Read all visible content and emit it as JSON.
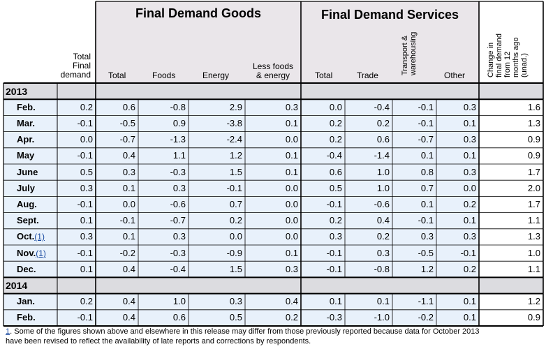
{
  "colors": {
    "header_shade": "#eae6ea",
    "row_shade": "#e8f1fb",
    "year_shade": "#dcdce0",
    "grid": "#000000",
    "link": "#1a4aa0"
  },
  "header": {
    "goods_title": "Final Demand Goods",
    "services_title": "Final Demand Services",
    "total_final_demand": [
      "Total",
      "Final",
      "demand"
    ],
    "goods_total": "Total",
    "goods_foods": "Foods",
    "goods_energy": "Energy",
    "goods_less": [
      "Less foods",
      "& energy"
    ],
    "services_total": "Total",
    "services_trade": "Trade",
    "services_transport": [
      "Transport &",
      "warehousing"
    ],
    "services_other": "Other",
    "change_12m": [
      "Change in",
      "final demand",
      "from 12",
      "months ago",
      "(unad.)"
    ]
  },
  "sections": [
    {
      "year": "2013",
      "rows": [
        {
          "month": "Feb.",
          "fn": "",
          "values": [
            "0.2",
            "0.6",
            "-0.8",
            "2.9",
            "0.3",
            "0.0",
            "-0.4",
            "-0.1",
            "0.3",
            "1.6"
          ]
        },
        {
          "month": "Mar.",
          "fn": "",
          "values": [
            "-0.1",
            "-0.5",
            "0.9",
            "-3.8",
            "0.1",
            "0.2",
            "0.2",
            "-0.1",
            "0.1",
            "1.3"
          ]
        },
        {
          "month": "Apr.",
          "fn": "",
          "values": [
            "0.0",
            "-0.7",
            "-1.3",
            "-2.4",
            "0.0",
            "0.2",
            "0.6",
            "-0.7",
            "0.3",
            "0.9"
          ]
        },
        {
          "month": "May",
          "fn": "",
          "values": [
            "-0.1",
            "0.4",
            "1.1",
            "1.2",
            "0.1",
            "-0.4",
            "-1.4",
            "0.1",
            "0.1",
            "0.9"
          ]
        },
        {
          "month": "June",
          "fn": "",
          "values": [
            "0.5",
            "0.3",
            "-0.3",
            "1.5",
            "0.1",
            "0.6",
            "1.0",
            "0.8",
            "0.3",
            "1.7"
          ]
        },
        {
          "month": "July",
          "fn": "",
          "values": [
            "0.3",
            "0.1",
            "0.3",
            "-0.1",
            "0.0",
            "0.5",
            "1.0",
            "0.7",
            "0.0",
            "2.0"
          ]
        },
        {
          "month": "Aug.",
          "fn": "",
          "values": [
            "-0.1",
            "0.0",
            "-0.6",
            "0.7",
            "0.0",
            "-0.1",
            "-0.6",
            "0.1",
            "0.2",
            "1.7"
          ]
        },
        {
          "month": "Sept.",
          "fn": "",
          "values": [
            "0.1",
            "-0.1",
            "-0.7",
            "0.2",
            "0.0",
            "0.2",
            "0.4",
            "-0.1",
            "0.1",
            "1.1"
          ]
        },
        {
          "month": "Oct.",
          "fn": "(1)",
          "values": [
            "0.3",
            "0.1",
            "0.3",
            "0.0",
            "0.0",
            "0.3",
            "0.2",
            "0.3",
            "0.3",
            "1.3"
          ]
        },
        {
          "month": "Nov.",
          "fn": "(1)",
          "values": [
            "-0.1",
            "-0.2",
            "-0.3",
            "-0.9",
            "0.1",
            "-0.1",
            "0.3",
            "-0.5",
            "-0.1",
            "1.0"
          ]
        },
        {
          "month": "Dec.",
          "fn": "",
          "values": [
            "0.1",
            "0.4",
            "-0.4",
            "1.5",
            "0.3",
            "-0.1",
            "-0.8",
            "1.2",
            "0.2",
            "1.1"
          ]
        }
      ]
    },
    {
      "year": "2014",
      "rows": [
        {
          "month": "Jan.",
          "fn": "",
          "values": [
            "0.2",
            "0.4",
            "1.0",
            "0.3",
            "0.4",
            "0.1",
            "0.1",
            "-1.1",
            "0.1",
            "1.2"
          ]
        },
        {
          "month": "Feb.",
          "fn": "",
          "values": [
            "-0.1",
            "0.4",
            "0.6",
            "0.5",
            "0.2",
            "-0.3",
            "-1.0",
            "-0.2",
            "0.1",
            "0.9"
          ]
        }
      ]
    }
  ],
  "footnote": {
    "marker": "1",
    "line1": ". Some of the figures shown above and elsewhere in this release may differ from those previously reported because data for October 2013",
    "line2": "have been revised to reflect the availability of late reports and corrections by respondents."
  }
}
